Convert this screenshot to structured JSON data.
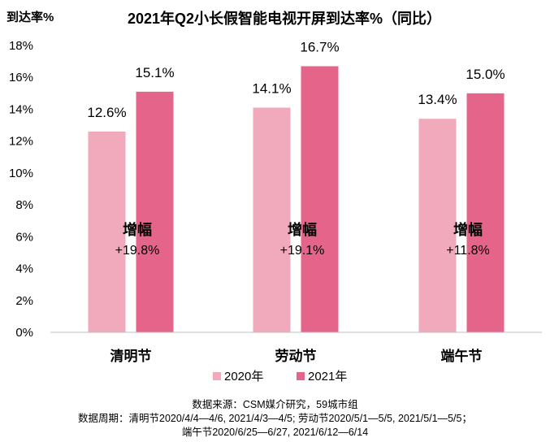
{
  "chart_data": {
    "type": "bar",
    "title": "2021年Q2小长假智能电视开屏到达率%（同比）",
    "ylabel": "到达率%",
    "xlabel": "",
    "ylim": [
      0,
      18
    ],
    "yticks": [
      0,
      2,
      4,
      6,
      8,
      10,
      12,
      14,
      16,
      18
    ],
    "ytick_labels": [
      "0%",
      "2%",
      "4%",
      "6%",
      "8%",
      "10%",
      "12%",
      "14%",
      "16%",
      "18%"
    ],
    "categories": [
      "清明节",
      "劳动节",
      "端午节"
    ],
    "series": [
      {
        "name": "2020年",
        "values": [
          12.6,
          14.1,
          13.4
        ],
        "labels": [
          "12.6%",
          "14.1%",
          "13.4%"
        ],
        "color": "#F0AABB"
      },
      {
        "name": "2021年",
        "values": [
          15.1,
          16.7,
          15.0
        ],
        "labels": [
          "15.1%",
          "16.7%",
          "15.0%"
        ],
        "color": "#E5658A"
      }
    ],
    "annotations": {
      "increase_label": "增幅",
      "increase_values": [
        "+19.8%",
        "+19.1%",
        "+11.8%"
      ]
    },
    "legend_position": "bottom",
    "grid": false
  },
  "footer": {
    "source": "数据来源：CSM媒介研究，59城市组",
    "period_line1": "数据周期：清明节2020/4/4—4/6, 2021/4/3—4/5; 劳动节2020/5/1—5/5, 2021/5/1—5/5；",
    "period_line2": "端午节2020/6/25—6/27, 2021/6/12—6/14"
  }
}
